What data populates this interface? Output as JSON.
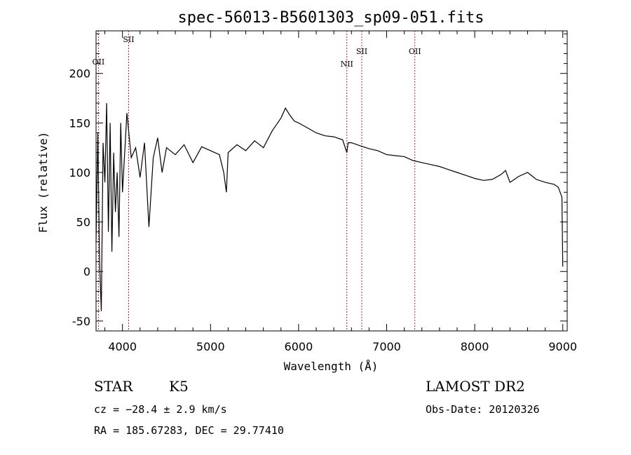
{
  "chart_data": {
    "type": "line",
    "title": "spec-56013-B5601303_sp09-051.fits",
    "xlabel": "Wavelength (Å)",
    "ylabel": "Flux (relative)",
    "xlim": [
      3700,
      9050
    ],
    "ylim": [
      -60,
      243
    ],
    "x_ticks": [
      4000,
      5000,
      6000,
      7000,
      8000,
      9000
    ],
    "y_ticks": [
      -50,
      0,
      50,
      100,
      150,
      200
    ],
    "grid": false,
    "line_color": "#000000",
    "marker_color": "#b22222",
    "lines": [
      {
        "label": "OII",
        "x": 3727
      },
      {
        "label": "SII",
        "x": 4070
      },
      {
        "label": "NII",
        "x": 6548
      },
      {
        "label": "SII",
        "x": 6717
      },
      {
        "label": "OII",
        "x": 7320
      }
    ],
    "series": [
      {
        "values": [
          [
            3700,
            30
          ],
          [
            3720,
            140
          ],
          [
            3740,
            10
          ],
          [
            3760,
            -40
          ],
          [
            3780,
            130
          ],
          [
            3800,
            90
          ],
          [
            3820,
            170
          ],
          [
            3840,
            40
          ],
          [
            3860,
            150
          ],
          [
            3880,
            20
          ],
          [
            3900,
            120
          ],
          [
            3920,
            60
          ],
          [
            3940,
            100
          ],
          [
            3960,
            35
          ],
          [
            3980,
            150
          ],
          [
            4000,
            80
          ],
          [
            4050,
            160
          ],
          [
            4100,
            115
          ],
          [
            4150,
            125
          ],
          [
            4200,
            95
          ],
          [
            4250,
            130
          ],
          [
            4300,
            45
          ],
          [
            4350,
            115
          ],
          [
            4400,
            135
          ],
          [
            4450,
            100
          ],
          [
            4500,
            125
          ],
          [
            4600,
            118
          ],
          [
            4700,
            128
          ],
          [
            4800,
            110
          ],
          [
            4900,
            126
          ],
          [
            5000,
            122
          ],
          [
            5100,
            118
          ],
          [
            5150,
            100
          ],
          [
            5180,
            80
          ],
          [
            5200,
            120
          ],
          [
            5300,
            128
          ],
          [
            5400,
            122
          ],
          [
            5500,
            132
          ],
          [
            5600,
            125
          ],
          [
            5700,
            142
          ],
          [
            5800,
            155
          ],
          [
            5850,
            165
          ],
          [
            5900,
            158
          ],
          [
            5950,
            152
          ],
          [
            6000,
            150
          ],
          [
            6100,
            145
          ],
          [
            6200,
            140
          ],
          [
            6300,
            137
          ],
          [
            6400,
            136
          ],
          [
            6500,
            133
          ],
          [
            6548,
            120
          ],
          [
            6563,
            130
          ],
          [
            6600,
            130
          ],
          [
            6700,
            127
          ],
          [
            6800,
            124
          ],
          [
            6900,
            122
          ],
          [
            7000,
            118
          ],
          [
            7100,
            117
          ],
          [
            7200,
            116
          ],
          [
            7300,
            112
          ],
          [
            7400,
            110
          ],
          [
            7500,
            108
          ],
          [
            7600,
            106
          ],
          [
            7700,
            103
          ],
          [
            7800,
            100
          ],
          [
            7900,
            97
          ],
          [
            8000,
            94
          ],
          [
            8100,
            92
          ],
          [
            8200,
            93
          ],
          [
            8300,
            98
          ],
          [
            8350,
            102
          ],
          [
            8400,
            90
          ],
          [
            8500,
            96
          ],
          [
            8600,
            100
          ],
          [
            8700,
            93
          ],
          [
            8800,
            90
          ],
          [
            8900,
            88
          ],
          [
            8950,
            85
          ],
          [
            8990,
            75
          ],
          [
            9000,
            5
          ]
        ]
      }
    ]
  },
  "info": {
    "object_class": "STAR",
    "subclass": "K5",
    "redshift": "cz = −28.4 ± 2.9 km/s",
    "coords": "RA = 185.67283, DEC =  29.77410",
    "survey": "LAMOST DR2",
    "obs_date": "Obs-Date: 20120326"
  }
}
